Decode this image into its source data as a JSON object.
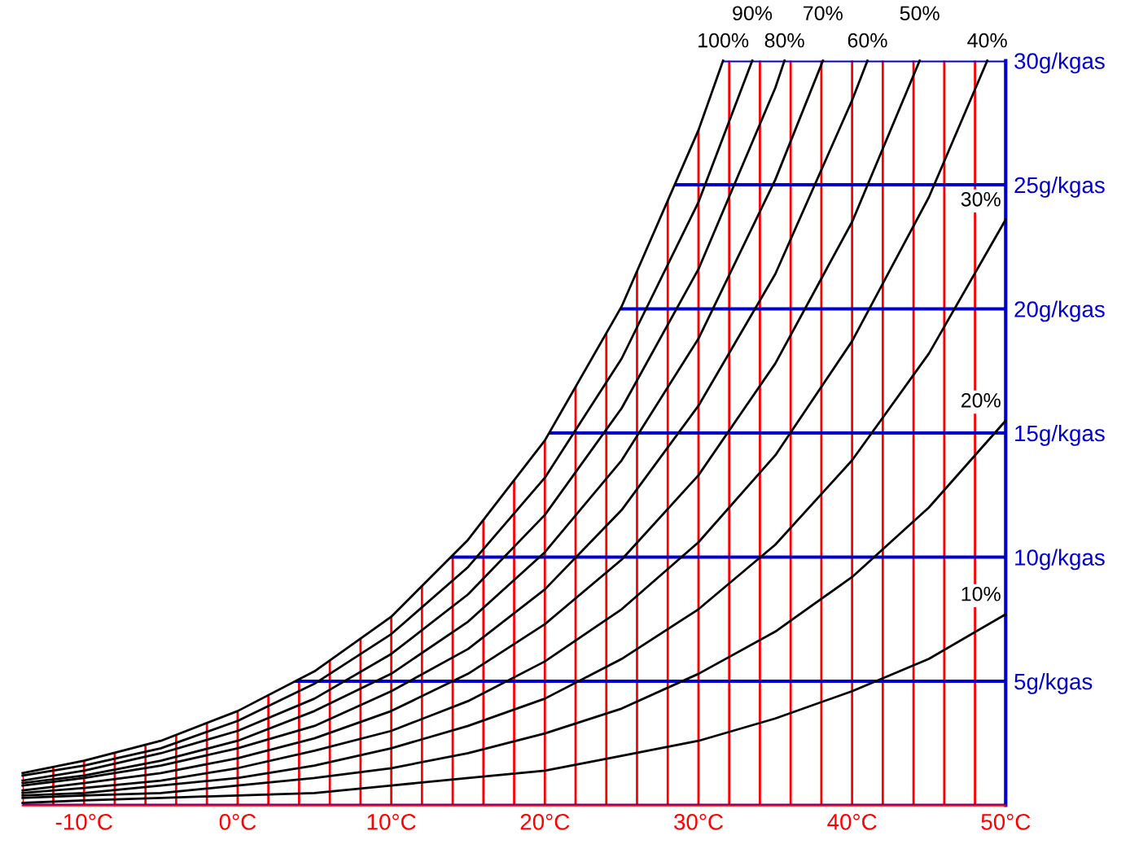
{
  "chart_data": {
    "type": "line",
    "xlim": [
      -14,
      50
    ],
    "ylim": [
      0,
      30
    ],
    "xticks": [
      {
        "value": -14,
        "label": null
      },
      {
        "value": -12,
        "label": null
      },
      {
        "value": -10,
        "label": "-10°C"
      },
      {
        "value": -8,
        "label": null
      },
      {
        "value": -6,
        "label": null
      },
      {
        "value": -4,
        "label": null
      },
      {
        "value": -2,
        "label": null
      },
      {
        "value": 0,
        "label": "0°C"
      },
      {
        "value": 2,
        "label": null
      },
      {
        "value": 4,
        "label": null
      },
      {
        "value": 6,
        "label": null
      },
      {
        "value": 8,
        "label": null
      },
      {
        "value": 10,
        "label": "10°C"
      },
      {
        "value": 12,
        "label": null
      },
      {
        "value": 14,
        "label": null
      },
      {
        "value": 16,
        "label": null
      },
      {
        "value": 18,
        "label": null
      },
      {
        "value": 20,
        "label": "20°C"
      },
      {
        "value": 22,
        "label": null
      },
      {
        "value": 24,
        "label": null
      },
      {
        "value": 26,
        "label": null
      },
      {
        "value": 28,
        "label": null
      },
      {
        "value": 30,
        "label": "30°C"
      },
      {
        "value": 32,
        "label": null
      },
      {
        "value": 34,
        "label": null
      },
      {
        "value": 36,
        "label": null
      },
      {
        "value": 38,
        "label": null
      },
      {
        "value": 40,
        "label": "40°C"
      },
      {
        "value": 42,
        "label": null
      },
      {
        "value": 44,
        "label": null
      },
      {
        "value": 46,
        "label": null
      },
      {
        "value": 48,
        "label": null
      },
      {
        "value": 50,
        "label": "50°C"
      }
    ],
    "yticks": [
      {
        "value": 0,
        "label": null
      },
      {
        "value": 5,
        "label": "5g/kgas"
      },
      {
        "value": 10,
        "label": "10g/kgas"
      },
      {
        "value": 15,
        "label": "15g/kgas"
      },
      {
        "value": 20,
        "label": "20g/kgas"
      },
      {
        "value": 25,
        "label": "25g/kgas"
      },
      {
        "value": 30,
        "label": "30g/kgas"
      }
    ],
    "grid": true,
    "marker": "none",
    "line_style": "solid",
    "series": [
      {
        "color": "#000000",
        "x": [
          -14,
          -10,
          -5,
          0,
          5,
          10,
          15,
          20,
          25,
          30,
          31.6
        ],
        "values": [
          1.3,
          1.8,
          2.6,
          3.8,
          5.4,
          7.6,
          10.7,
          14.7,
          20.1,
          27.2,
          30
        ]
      },
      {
        "color": "#000000",
        "x": [
          -14,
          -10,
          -5,
          0,
          5,
          10,
          15,
          20,
          25,
          30,
          33.5
        ],
        "values": [
          1.2,
          1.6,
          2.3,
          3.4,
          4.9,
          6.9,
          9.6,
          13.2,
          18.0,
          24.3,
          30
        ]
      },
      {
        "color": "#000000",
        "x": [
          -14,
          -10,
          -5,
          0,
          5,
          10,
          15,
          20,
          25,
          30,
          35,
          35.6
        ],
        "values": [
          1.0,
          1.4,
          2.1,
          3.0,
          4.3,
          6.1,
          8.5,
          11.7,
          16.0,
          21.6,
          28.9,
          30
        ]
      },
      {
        "color": "#000000",
        "x": [
          -14,
          -10,
          -5,
          0,
          5,
          10,
          15,
          20,
          25,
          30,
          35,
          38.1
        ],
        "values": [
          0.9,
          1.2,
          1.8,
          2.6,
          3.8,
          5.3,
          7.4,
          10.2,
          13.9,
          18.8,
          25.2,
          30
        ]
      },
      {
        "color": "#000000",
        "x": [
          -14,
          -10,
          -5,
          0,
          5,
          10,
          15,
          20,
          25,
          30,
          35,
          40,
          41.0
        ],
        "values": [
          0.8,
          1.1,
          1.6,
          2.3,
          3.2,
          4.6,
          6.3,
          8.7,
          11.9,
          16.1,
          21.4,
          28.4,
          30
        ]
      },
      {
        "color": "#000000",
        "x": [
          -14,
          -10,
          -5,
          0,
          5,
          10,
          15,
          20,
          25,
          30,
          35,
          40,
          44.4
        ],
        "values": [
          0.6,
          0.9,
          1.3,
          1.9,
          2.7,
          3.8,
          5.3,
          7.3,
          9.9,
          13.3,
          17.8,
          23.5,
          30
        ]
      },
      {
        "color": "#000000",
        "x": [
          -14,
          -10,
          -5,
          0,
          5,
          10,
          15,
          20,
          25,
          30,
          35,
          40,
          45,
          48.8
        ],
        "values": [
          0.5,
          0.7,
          1.0,
          1.5,
          2.2,
          3.0,
          4.2,
          5.8,
          7.9,
          10.6,
          14.1,
          18.7,
          24.5,
          30
        ]
      },
      {
        "color": "#000000",
        "x": [
          -14,
          -10,
          -5,
          0,
          5,
          10,
          15,
          20,
          25,
          30,
          35,
          40,
          45,
          50
        ],
        "values": [
          0.4,
          0.5,
          0.8,
          1.1,
          1.6,
          2.3,
          3.2,
          4.3,
          5.9,
          7.9,
          10.5,
          13.9,
          18.2,
          23.6
        ]
      },
      {
        "color": "#000000",
        "x": [
          -14,
          -10,
          -5,
          0,
          5,
          10,
          15,
          20,
          25,
          30,
          35,
          40,
          45,
          50
        ],
        "values": [
          0.3,
          0.4,
          0.5,
          0.8,
          1.1,
          1.5,
          2.1,
          2.9,
          3.9,
          5.3,
          7.0,
          9.2,
          12.0,
          15.5
        ]
      },
      {
        "color": "#000000",
        "x": [
          -14,
          -10,
          -5,
          0,
          5,
          10,
          15,
          20,
          25,
          30,
          35,
          40,
          45,
          50
        ],
        "values": [
          0.1,
          0.2,
          0.3,
          0.4,
          0.5,
          0.8,
          1.1,
          1.4,
          2.0,
          2.6,
          3.5,
          4.6,
          5.9,
          7.7
        ]
      }
    ],
    "annotations": [
      {
        "text": "100%",
        "x": 31.6,
        "y": 30
      },
      {
        "text": "90%",
        "x": 33.5,
        "y": 30
      },
      {
        "text": "80%",
        "x": 35.6,
        "y": 30
      },
      {
        "text": "70%",
        "x": 38.1,
        "y": 30
      },
      {
        "text": "60%",
        "x": 41.0,
        "y": 30
      },
      {
        "text": "50%",
        "x": 44.4,
        "y": 30
      },
      {
        "text": "40%",
        "x": 48.8,
        "y": 30
      },
      {
        "text": "30%",
        "x": 50,
        "y": 23.6
      },
      {
        "text": "20%",
        "x": 50,
        "y": 15.5
      },
      {
        "text": "10%",
        "x": 50,
        "y": 7.7
      }
    ]
  }
}
